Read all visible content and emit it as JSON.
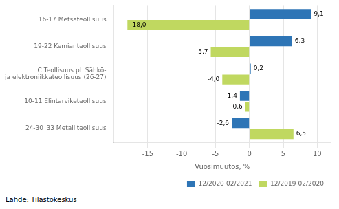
{
  "chart_data": {
    "type": "bar",
    "orientation": "horizontal",
    "categories": [
      "16-17 Metsäteollisuus",
      "19-22 Kemianteollisuus",
      "C Teollisuus pl. Sähkö-\nja elektroniikkateollisuus (26-27)",
      "10-11 Elintarviketeollisuus",
      "24-30_33 Metalliteollisuus"
    ],
    "series": [
      {
        "name": "12/2020-02/2021",
        "color": "#2E75B6",
        "values": [
          9.1,
          6.3,
          0.2,
          -1.4,
          -2.6
        ],
        "value_labels": [
          "9,1",
          "6,3",
          "0,2",
          "-1,4",
          "-2,6"
        ]
      },
      {
        "name": "12/2019-02/2020",
        "color": "#C0D860",
        "values": [
          -18.0,
          -5.7,
          -4.0,
          -0.6,
          6.5
        ],
        "value_labels": [
          "-18,0",
          "-5,7",
          "-4,0",
          "-0,6",
          "6,5"
        ]
      }
    ],
    "xlabel": "Vuosimuutos, %",
    "xlim": [
      -20,
      12
    ],
    "xticks": [
      -15,
      -10,
      -5,
      0,
      5,
      10
    ],
    "grid": true,
    "legend": "lower right",
    "data_labels": true,
    "annotations": [
      "Lähde: Tilastokeskus"
    ]
  }
}
